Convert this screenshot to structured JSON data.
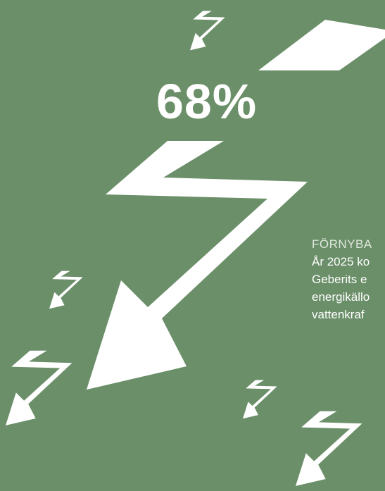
{
  "stat": "68%",
  "text": {
    "label": "FÖRNYBA",
    "lines": [
      "År 2025 ko",
      "Geberits e",
      "energikällo",
      "vattenkraf"
    ]
  }
}
